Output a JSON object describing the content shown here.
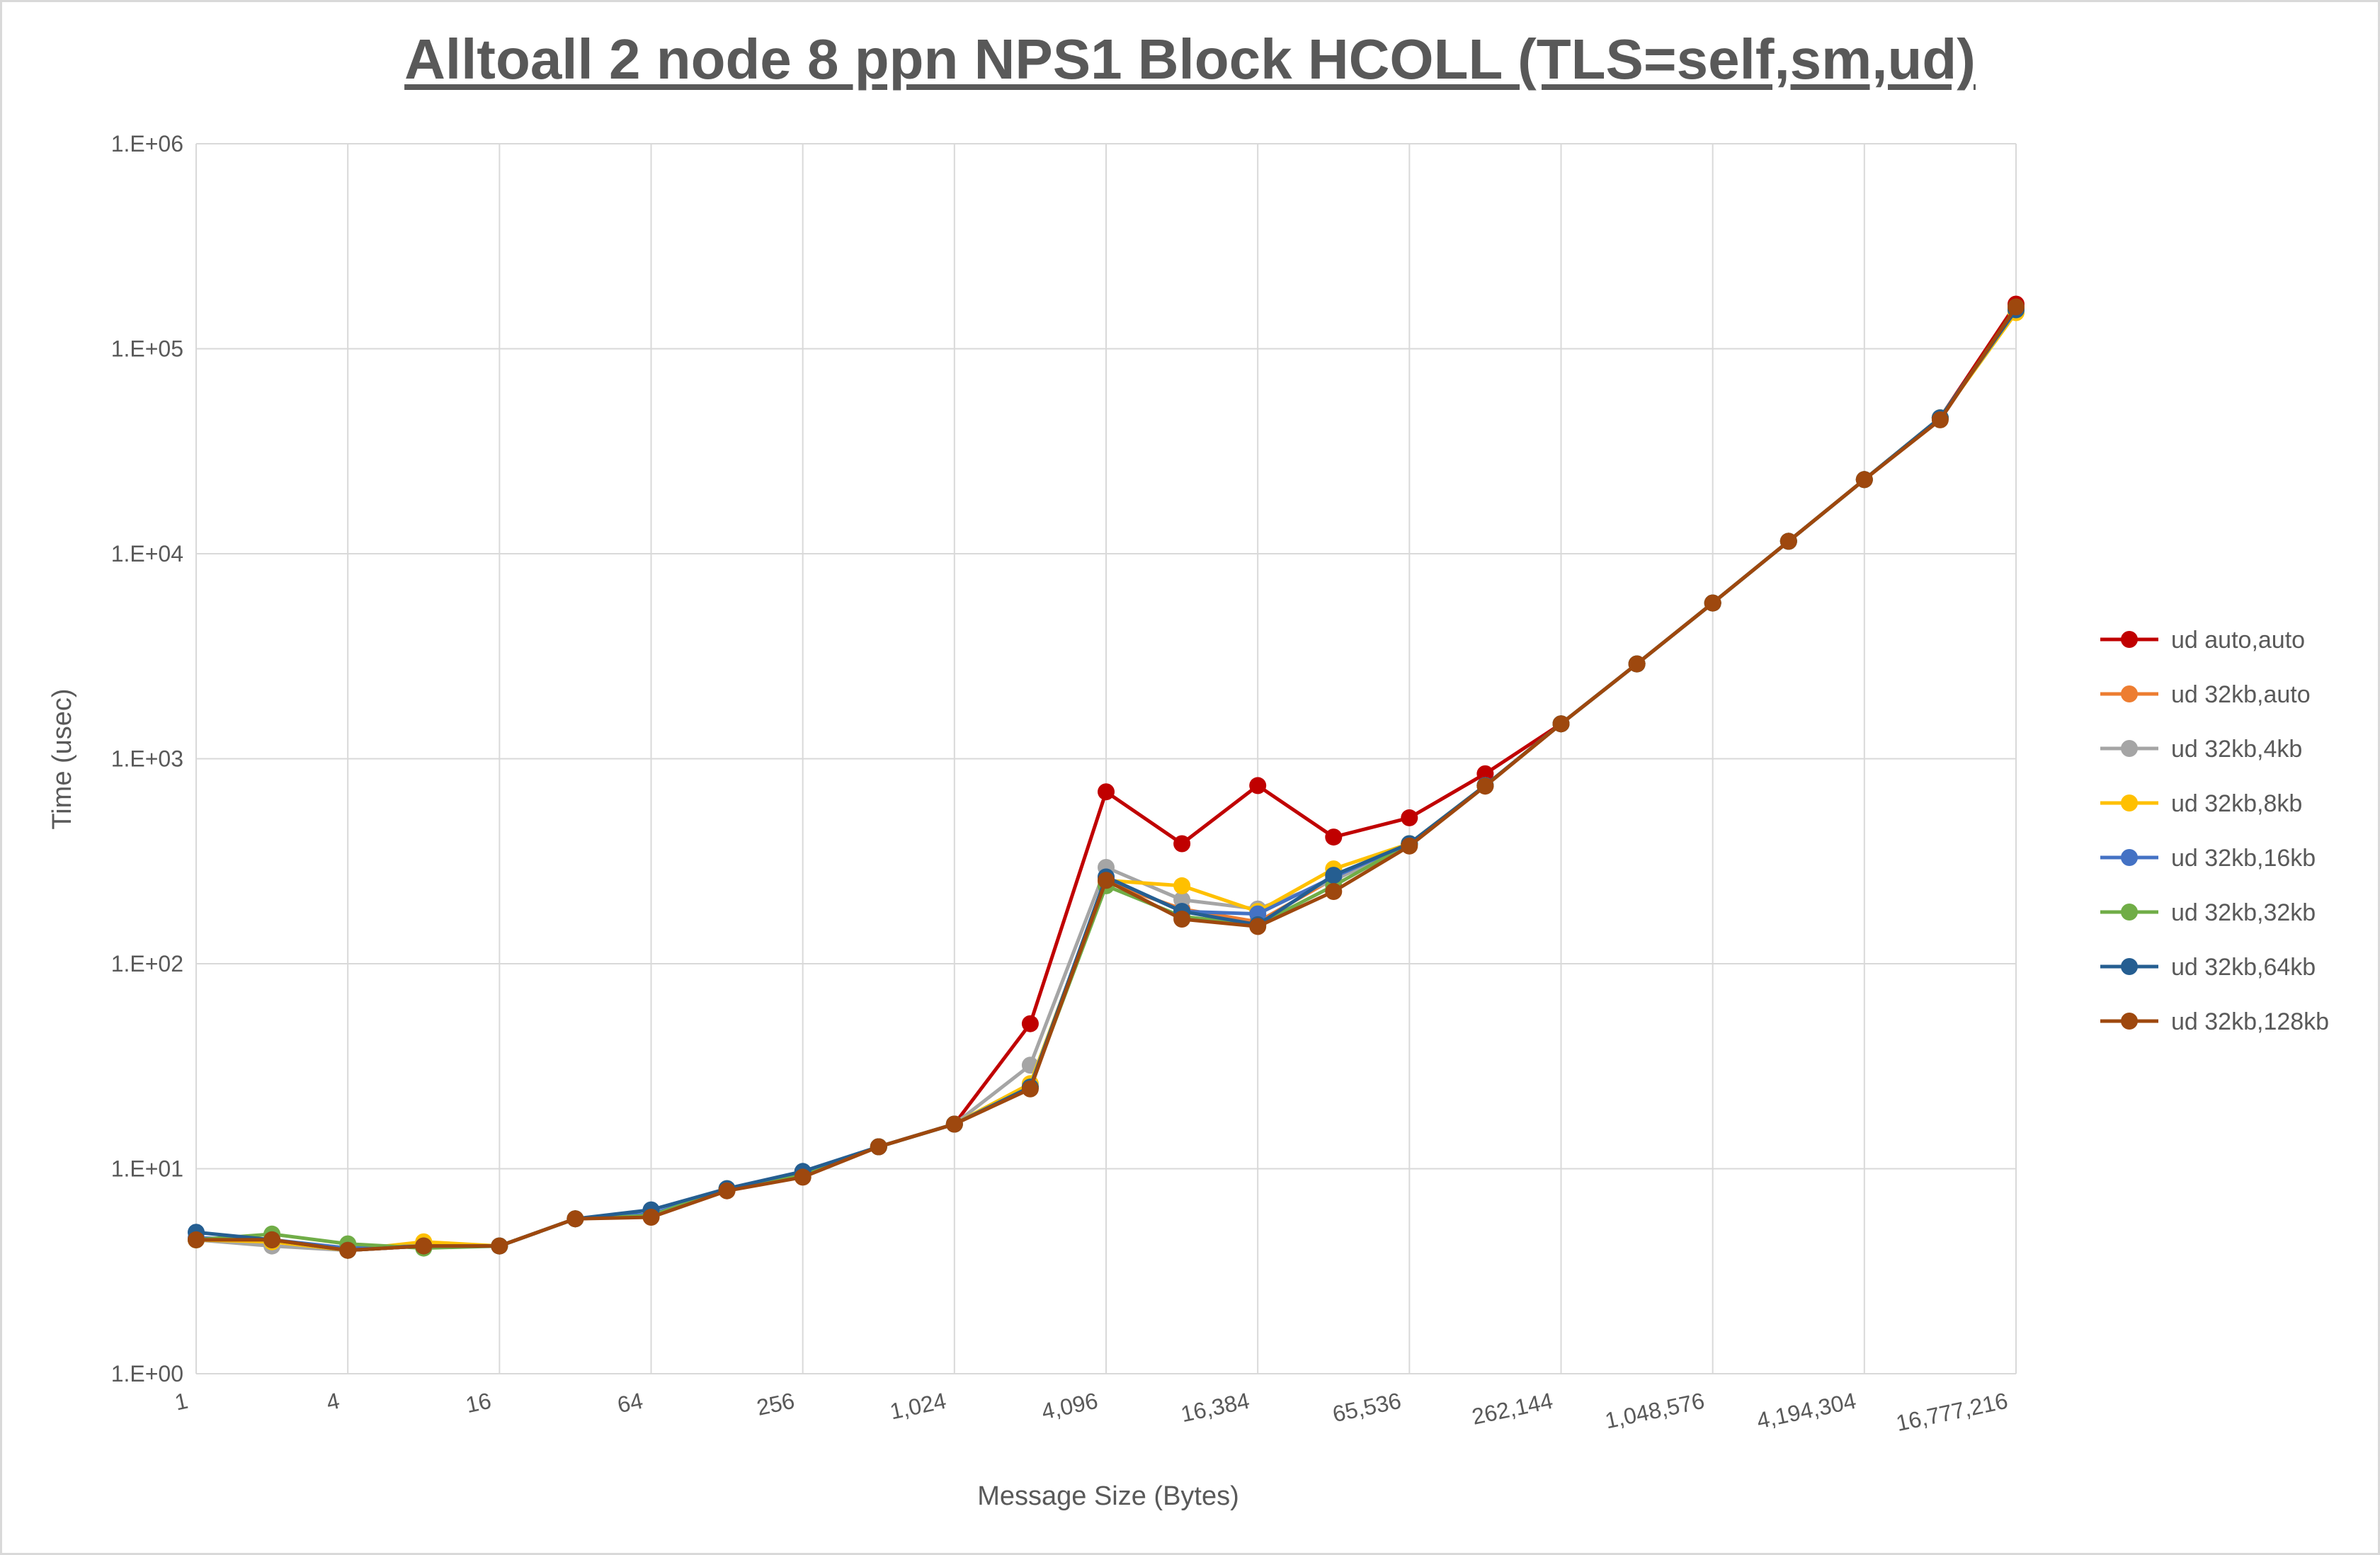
{
  "chart_data": {
    "type": "line",
    "title": "Alltoall 2 node 8 ppn NPS1 Block HCOLL (TLS=self,sm,ud)",
    "xlabel": "Message Size (Bytes)",
    "ylabel": "Time (usec)",
    "x_scale": "log2",
    "y_scale": "log10",
    "ylim": [
      1,
      1000000
    ],
    "xlim": [
      1,
      16777216
    ],
    "x_tick_labels": [
      "1",
      "4",
      "16",
      "64",
      "256",
      "1,024",
      "4,096",
      "16,384",
      "65,536",
      "262,144",
      "1,048,576",
      "4,194,304",
      "16,777,216"
    ],
    "y_tick_labels": [
      "1.E+00",
      "1.E+01",
      "1.E+02",
      "1.E+03",
      "1.E+04",
      "1.E+05",
      "1.E+06"
    ],
    "grid": true,
    "legend_position": "right",
    "x": [
      1,
      2,
      4,
      8,
      16,
      32,
      64,
      128,
      256,
      512,
      1024,
      2048,
      4096,
      8192,
      16384,
      32768,
      65536,
      131072,
      262144,
      524288,
      1048576,
      2097152,
      4194304,
      8388608,
      16777216
    ],
    "series": [
      {
        "name": "ud auto,auto",
        "color": "#c00000",
        "values": [
          4.5,
          4.5,
          4.0,
          4.2,
          4.2,
          5.7,
          5.9,
          7.9,
          9.4,
          12.8,
          16.5,
          51,
          690,
          385,
          740,
          415,
          515,
          845,
          1480,
          2900,
          5750,
          11500,
          23000,
          46000,
          165000
        ]
      },
      {
        "name": "ud 32kb,auto",
        "color": "#ed7d31",
        "values": [
          4.5,
          4.4,
          4.0,
          4.2,
          4.2,
          5.7,
          5.9,
          7.9,
          9.4,
          12.8,
          16.5,
          25,
          250,
          185,
          160,
          260,
          385,
          740,
          1480,
          2900,
          5750,
          11500,
          23000,
          46000,
          155000
        ]
      },
      {
        "name": "ud 32kb,4kb",
        "color": "#a5a5a5",
        "values": [
          4.5,
          4.2,
          4.0,
          4.2,
          4.2,
          5.7,
          5.9,
          7.9,
          9.4,
          12.8,
          16.5,
          32,
          295,
          205,
          185,
          255,
          385,
          740,
          1480,
          2900,
          5750,
          11500,
          23000,
          46000,
          155000
        ]
      },
      {
        "name": "ud 32kb,8kb",
        "color": "#ffc000",
        "values": [
          4.5,
          4.4,
          4.0,
          4.4,
          4.2,
          5.7,
          5.9,
          7.9,
          9.4,
          12.8,
          16.5,
          26,
          255,
          240,
          180,
          290,
          385,
          740,
          1480,
          2900,
          5750,
          11500,
          23000,
          46000,
          150000
        ]
      },
      {
        "name": "ud 32kb,16kb",
        "color": "#4472c4",
        "values": [
          4.6,
          4.5,
          4.1,
          4.2,
          4.2,
          5.7,
          6.0,
          7.9,
          9.4,
          12.8,
          16.5,
          25,
          265,
          180,
          175,
          265,
          385,
          740,
          1480,
          2900,
          5750,
          11500,
          23000,
          46000,
          155000
        ]
      },
      {
        "name": "ud 32kb,32kb",
        "color": "#70ad47",
        "values": [
          4.5,
          4.8,
          4.3,
          4.1,
          4.2,
          5.7,
          5.9,
          8.0,
          9.4,
          12.8,
          16.5,
          25,
          240,
          170,
          155,
          240,
          385,
          740,
          1480,
          2900,
          5750,
          11500,
          23000,
          46000,
          155000
        ]
      },
      {
        "name": "ud 32kb,64kb",
        "color": "#255e91",
        "values": [
          4.9,
          4.5,
          4.0,
          4.2,
          4.2,
          5.7,
          6.3,
          8.0,
          9.7,
          12.8,
          16.5,
          25,
          265,
          180,
          155,
          270,
          385,
          740,
          1480,
          2900,
          5750,
          11500,
          23000,
          46000,
          155000
        ]
      },
      {
        "name": "ud 32kb,128kb",
        "color": "#9e480e",
        "values": [
          4.5,
          4.5,
          4.0,
          4.2,
          4.2,
          5.7,
          5.8,
          7.8,
          9.1,
          12.8,
          16.5,
          24.5,
          255,
          165,
          152,
          225,
          375,
          735,
          1480,
          2900,
          5750,
          11500,
          23000,
          45000,
          160000
        ]
      }
    ]
  }
}
